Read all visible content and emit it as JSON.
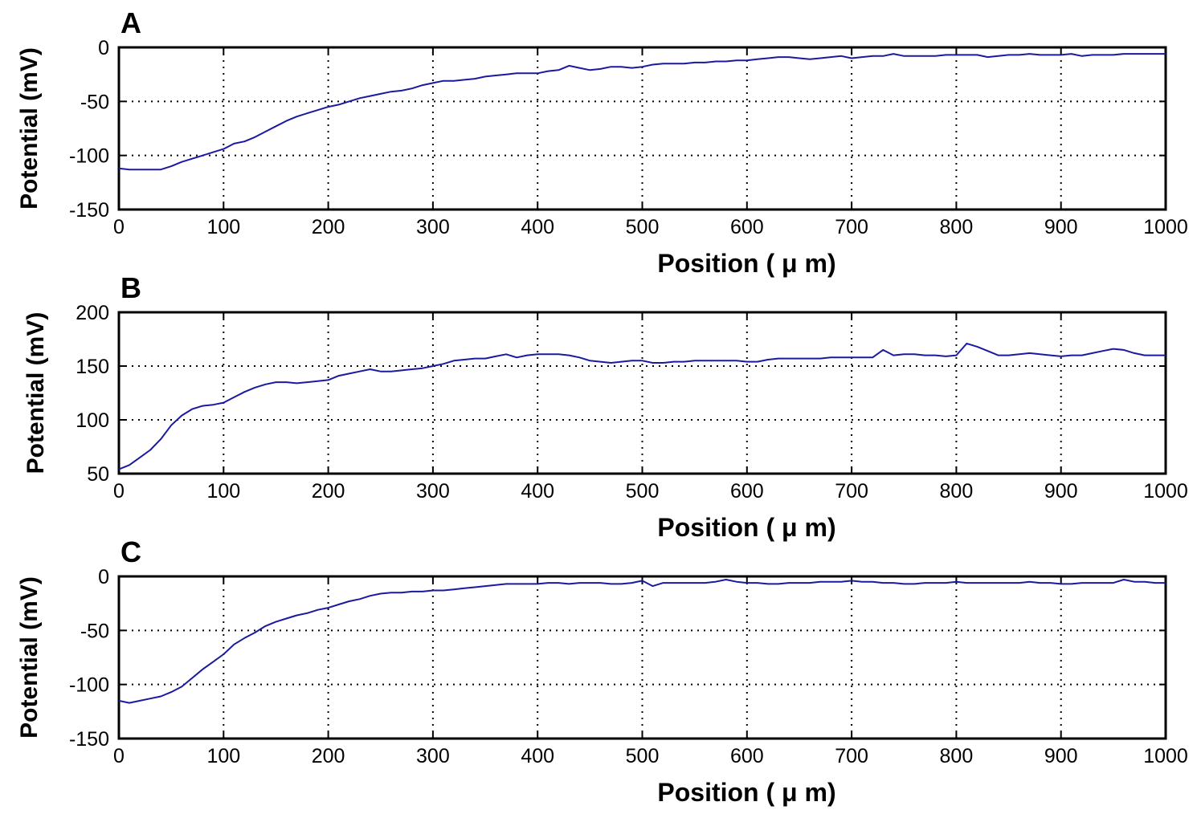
{
  "chart_data": [
    {
      "panel": "A",
      "type": "line",
      "xlabel": "Position ( μ m)",
      "ylabel": "Potential (mV)",
      "xlim": [
        0,
        1000
      ],
      "ylim": [
        -150,
        0
      ],
      "xticks": [
        "0",
        "100",
        "200",
        "300",
        "400",
        "500",
        "600",
        "700",
        "800",
        "900",
        "1000"
      ],
      "yticks": [
        "0",
        "-50",
        "-100",
        "-150"
      ],
      "grid": true,
      "color": "#1a1aa0",
      "x": [
        0,
        10,
        20,
        30,
        40,
        50,
        60,
        70,
        80,
        90,
        100,
        110,
        120,
        130,
        140,
        150,
        160,
        170,
        180,
        190,
        200,
        210,
        220,
        230,
        240,
        250,
        260,
        270,
        280,
        290,
        300,
        310,
        320,
        330,
        340,
        350,
        360,
        370,
        380,
        390,
        400,
        410,
        420,
        430,
        440,
        450,
        460,
        470,
        480,
        490,
        500,
        510,
        520,
        530,
        540,
        550,
        560,
        570,
        580,
        590,
        600,
        610,
        620,
        630,
        640,
        650,
        660,
        670,
        680,
        690,
        700,
        710,
        720,
        730,
        740,
        750,
        760,
        770,
        780,
        790,
        800,
        810,
        820,
        830,
        840,
        850,
        860,
        870,
        880,
        890,
        900,
        910,
        920,
        930,
        940,
        950,
        960,
        970,
        980,
        990,
        1000
      ],
      "y": [
        -112,
        -113,
        -113,
        -113,
        -113,
        -110,
        -106,
        -103,
        -100,
        -97,
        -94,
        -89,
        -87,
        -83,
        -78,
        -73,
        -68,
        -64,
        -61,
        -58,
        -55,
        -53,
        -50,
        -47,
        -45,
        -43,
        -41,
        -40,
        -38,
        -35,
        -33,
        -31,
        -31,
        -30,
        -29,
        -27,
        -26,
        -25,
        -24,
        -24,
        -24,
        -22,
        -21,
        -17,
        -19,
        -21,
        -20,
        -18,
        -18,
        -19,
        -18,
        -16,
        -15,
        -15,
        -15,
        -14,
        -14,
        -13,
        -13,
        -12,
        -12,
        -11,
        -10,
        -9,
        -9,
        -10,
        -11,
        -10,
        -9,
        -8,
        -10,
        -9,
        -8,
        -8,
        -6,
        -8,
        -8,
        -8,
        -8,
        -7,
        -7,
        -7,
        -7,
        -9,
        -8,
        -7,
        -7,
        -6,
        -7,
        -7,
        -7,
        -6,
        -8,
        -7,
        -7,
        -7,
        -6,
        -6,
        -6,
        -6,
        -6
      ]
    },
    {
      "panel": "B",
      "type": "line",
      "xlabel": "Position ( μ m)",
      "ylabel": "Potential (mV)",
      "xlim": [
        0,
        1000
      ],
      "ylim": [
        50,
        200
      ],
      "xticks": [
        "0",
        "100",
        "200",
        "300",
        "400",
        "500",
        "600",
        "700",
        "800",
        "900",
        "1000"
      ],
      "yticks": [
        "200",
        "150",
        "100",
        "50"
      ],
      "grid": true,
      "color": "#1a1aa0",
      "x": [
        0,
        10,
        20,
        30,
        40,
        50,
        60,
        70,
        80,
        90,
        100,
        110,
        120,
        130,
        140,
        150,
        160,
        170,
        180,
        190,
        200,
        210,
        220,
        230,
        240,
        250,
        260,
        270,
        280,
        290,
        300,
        310,
        320,
        330,
        340,
        350,
        360,
        370,
        380,
        390,
        400,
        410,
        420,
        430,
        440,
        450,
        460,
        470,
        480,
        490,
        500,
        510,
        520,
        530,
        540,
        550,
        560,
        570,
        580,
        590,
        600,
        610,
        620,
        630,
        640,
        650,
        660,
        670,
        680,
        690,
        700,
        710,
        720,
        730,
        740,
        750,
        760,
        770,
        780,
        790,
        800,
        810,
        820,
        830,
        840,
        850,
        860,
        870,
        880,
        890,
        900,
        910,
        920,
        930,
        940,
        950,
        960,
        970,
        980,
        990,
        1000
      ],
      "y": [
        54,
        58,
        65,
        72,
        82,
        95,
        104,
        110,
        113,
        114,
        116,
        121,
        126,
        130,
        133,
        135,
        135,
        134,
        135,
        136,
        137,
        141,
        143,
        145,
        147,
        145,
        145,
        146,
        147,
        148,
        150,
        152,
        155,
        156,
        157,
        157,
        159,
        161,
        158,
        160,
        161,
        161,
        161,
        160,
        158,
        155,
        154,
        153,
        154,
        155,
        155,
        153,
        153,
        154,
        154,
        155,
        155,
        155,
        155,
        155,
        154,
        154,
        156,
        157,
        157,
        157,
        157,
        157,
        158,
        158,
        158,
        158,
        158,
        165,
        160,
        161,
        161,
        160,
        160,
        159,
        160,
        171,
        168,
        164,
        160,
        160,
        161,
        162,
        161,
        160,
        159,
        160,
        160,
        162,
        164,
        166,
        165,
        162,
        160,
        160,
        160
      ]
    },
    {
      "panel": "C",
      "type": "line",
      "xlabel": "Position ( μ m)",
      "ylabel": "Potential (mV)",
      "xlim": [
        0,
        1000
      ],
      "ylim": [
        -150,
        0
      ],
      "xticks": [
        "0",
        "100",
        "200",
        "300",
        "400",
        "500",
        "600",
        "700",
        "800",
        "900",
        "1000"
      ],
      "yticks": [
        "0",
        "-50",
        "-100",
        "-150"
      ],
      "grid": true,
      "color": "#1a1aa0",
      "x": [
        0,
        10,
        20,
        30,
        40,
        50,
        60,
        70,
        80,
        90,
        100,
        110,
        120,
        130,
        140,
        150,
        160,
        170,
        180,
        190,
        200,
        210,
        220,
        230,
        240,
        250,
        260,
        270,
        280,
        290,
        300,
        310,
        320,
        330,
        340,
        350,
        360,
        370,
        380,
        390,
        400,
        410,
        420,
        430,
        440,
        450,
        460,
        470,
        480,
        490,
        500,
        510,
        520,
        530,
        540,
        550,
        560,
        570,
        580,
        590,
        600,
        610,
        620,
        630,
        640,
        650,
        660,
        670,
        680,
        690,
        700,
        710,
        720,
        730,
        740,
        750,
        760,
        770,
        780,
        790,
        800,
        810,
        820,
        830,
        840,
        850,
        860,
        870,
        880,
        890,
        900,
        910,
        920,
        930,
        940,
        950,
        960,
        970,
        980,
        990,
        1000
      ],
      "y": [
        -115,
        -117,
        -115,
        -113,
        -111,
        -107,
        -102,
        -94,
        -86,
        -79,
        -72,
        -63,
        -57,
        -52,
        -46,
        -42,
        -39,
        -36,
        -34,
        -31,
        -29,
        -26,
        -23,
        -21,
        -18,
        -16,
        -15,
        -15,
        -14,
        -14,
        -13,
        -13,
        -12,
        -11,
        -10,
        -9,
        -8,
        -7,
        -7,
        -7,
        -7,
        -6,
        -6,
        -7,
        -6,
        -6,
        -6,
        -7,
        -7,
        -6,
        -4,
        -9,
        -6,
        -6,
        -6,
        -6,
        -6,
        -5,
        -3,
        -5,
        -6,
        -6,
        -7,
        -7,
        -6,
        -6,
        -6,
        -5,
        -5,
        -5,
        -4,
        -5,
        -5,
        -6,
        -6,
        -7,
        -7,
        -6,
        -6,
        -6,
        -5,
        -6,
        -6,
        -6,
        -6,
        -6,
        -6,
        -5,
        -6,
        -6,
        -7,
        -7,
        -6,
        -6,
        -6,
        -6,
        -3,
        -5,
        -5,
        -6,
        -6
      ]
    }
  ]
}
